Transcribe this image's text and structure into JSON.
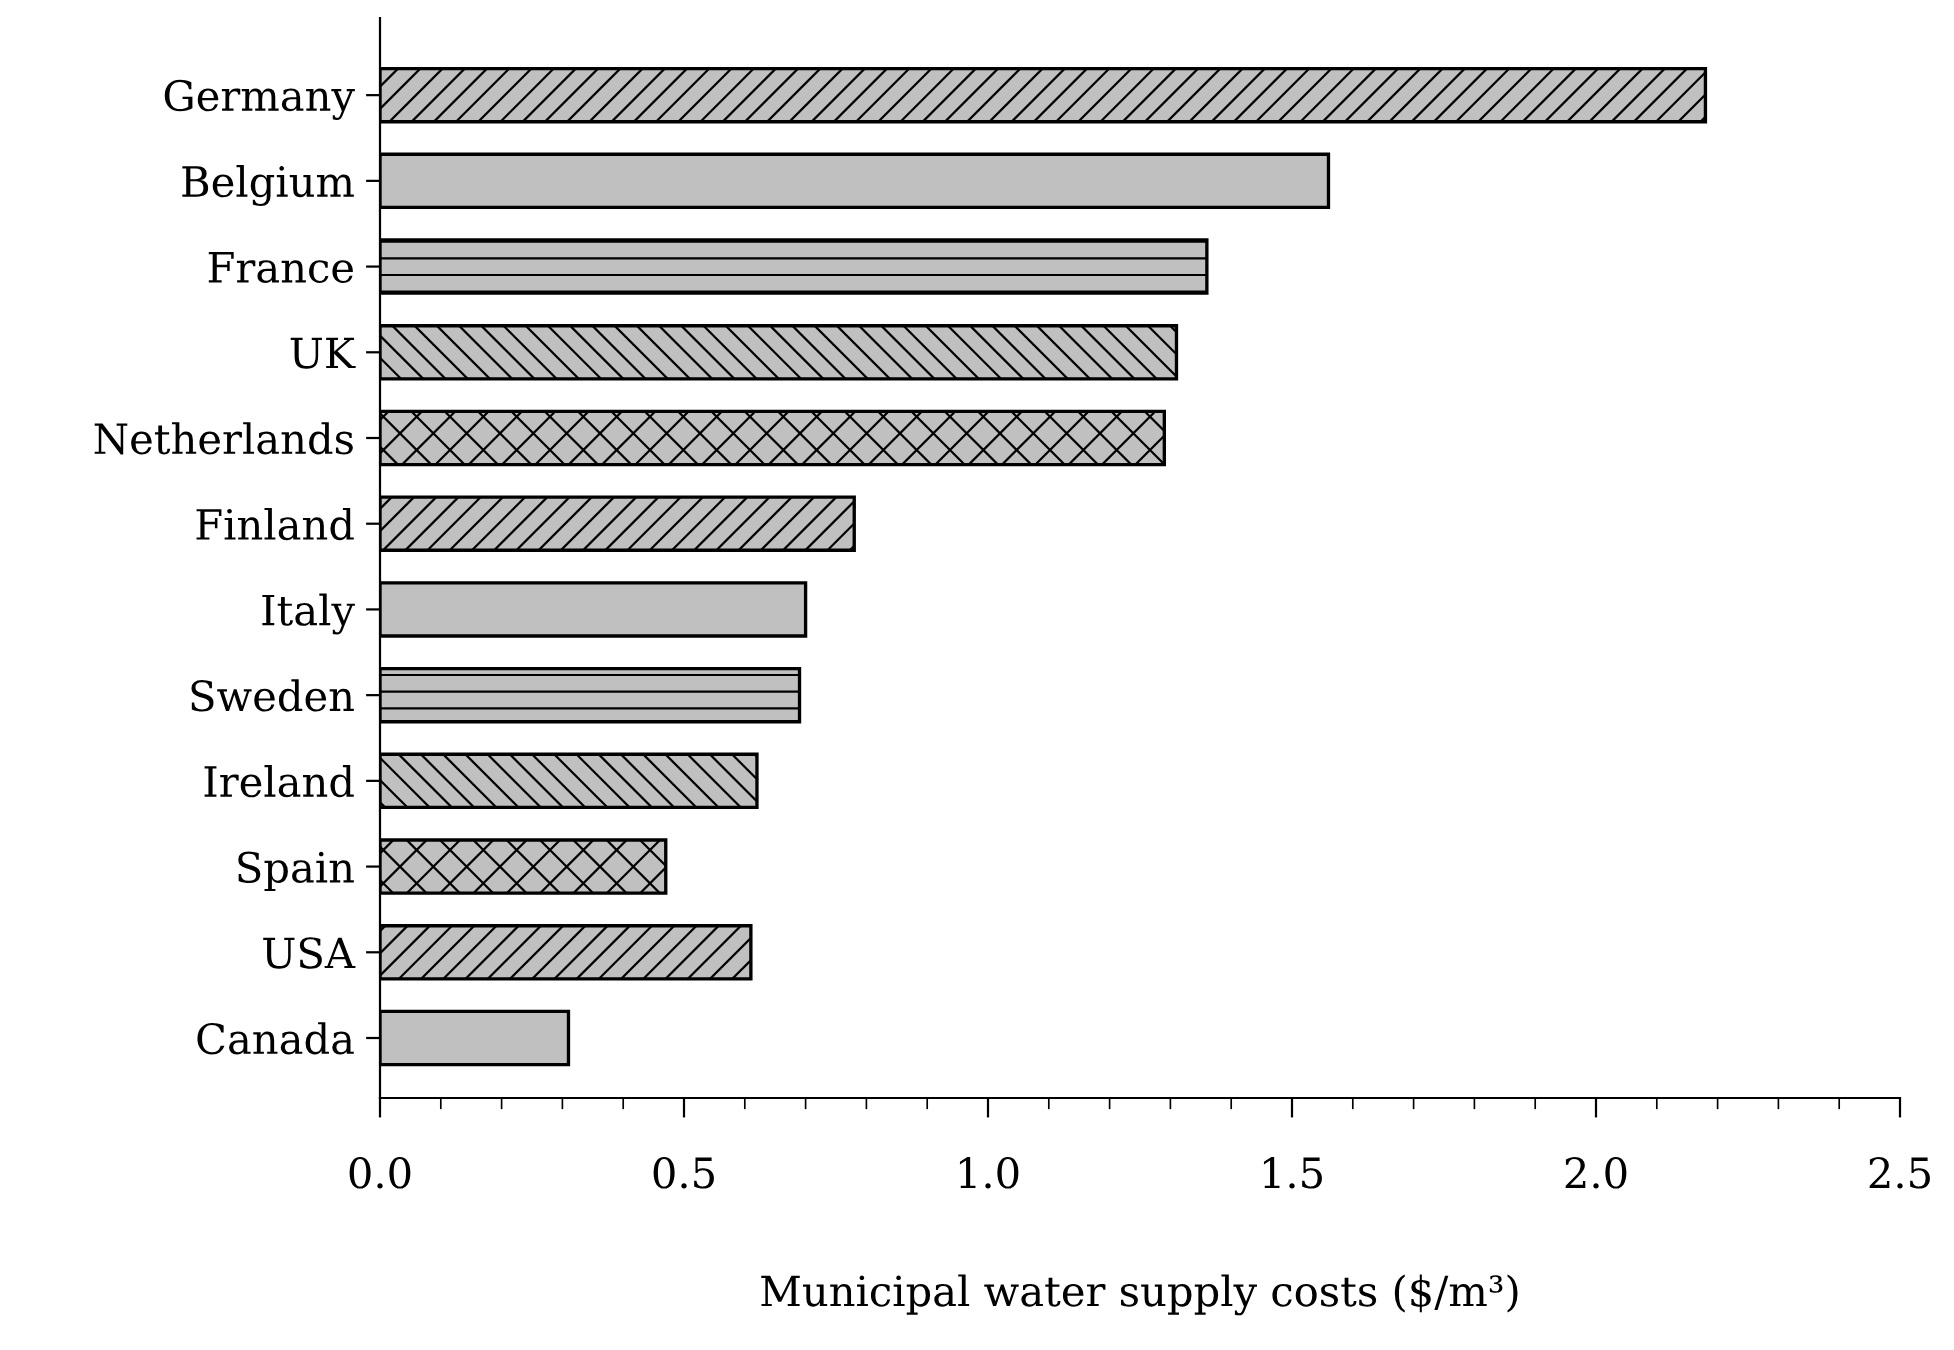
{
  "chart_data": {
    "type": "bar",
    "orientation": "horizontal",
    "xlabel": "Municipal water supply costs ($/m³)",
    "categories": [
      "Germany",
      "Belgium",
      "France",
      "UK",
      "Netherlands",
      "Finland",
      "Italy",
      "Sweden",
      "Ireland",
      "Spain",
      "USA",
      "Canada"
    ],
    "values": [
      2.18,
      1.56,
      1.36,
      1.31,
      1.29,
      0.78,
      0.7,
      0.69,
      0.62,
      0.47,
      0.61,
      0.31
    ],
    "color": "#c0c0c0",
    "xlim": [
      0,
      2.5
    ],
    "xticks": [
      {
        "value": 0,
        "label": "0.0"
      },
      0.5,
      {
        "value": 1,
        "label": "1.0"
      },
      1.5,
      {
        "value": 2,
        "label": "2.0"
      },
      2.5
    ],
    "grid": false,
    "legend": false
  }
}
